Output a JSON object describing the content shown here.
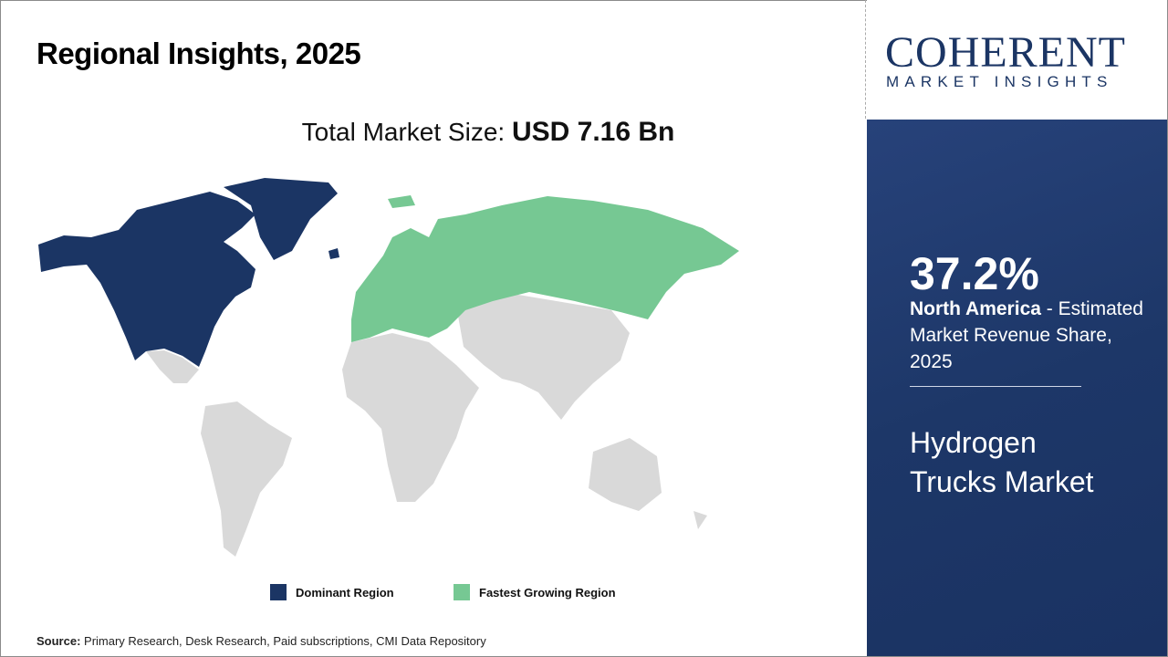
{
  "header": {
    "title": "Regional Insights, 2025"
  },
  "total": {
    "label": "Total Market Size: ",
    "value": "USD 7.16 Bn"
  },
  "legend": [
    {
      "label": "Dominant Region",
      "color": "#1b3564"
    },
    {
      "label": "Fastest Growing Region",
      "color": "#76c893"
    }
  ],
  "map": {
    "dominant_region": "North America",
    "fastest_growing_region": "Europe",
    "other_color": "#d9d9d9"
  },
  "source": {
    "label": "Source:",
    "text": " Primary Research, Desk Research, Paid subscriptions, CMI Data Repository"
  },
  "logo": {
    "main": "COHERENT",
    "sub": "MARKET INSIGHTS"
  },
  "panel": {
    "percent": "37.2%",
    "region": "North America",
    "desc": " - Estimated Market Revenue Share, 2025",
    "market": "Hydrogen Trucks Market"
  }
}
